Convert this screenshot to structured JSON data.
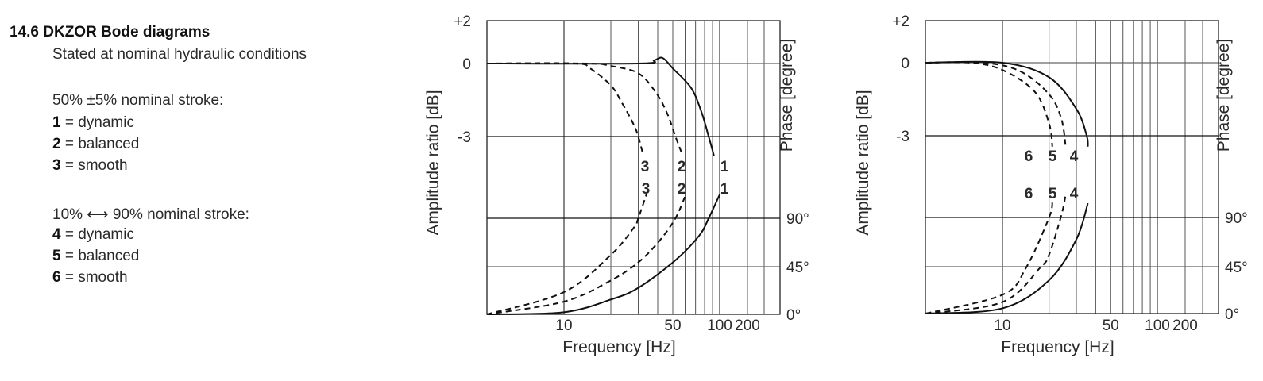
{
  "text": {
    "title": "14.6 DKZOR Bode diagrams",
    "subtitle": "Stated at nominal hydraulic conditions",
    "group1_heading": "50% ±5% nominal stroke:",
    "group1": [
      {
        "num": "1",
        "label": "= dynamic"
      },
      {
        "num": "2",
        "label": "= balanced"
      },
      {
        "num": "3",
        "label": "= smooth"
      }
    ],
    "group2_heading": "10% ⟷ 90% nominal stroke:",
    "group2": [
      {
        "num": "4",
        "label": "= dynamic"
      },
      {
        "num": "5",
        "label": "= balanced"
      },
      {
        "num": "6",
        "label": "= smooth"
      }
    ]
  },
  "chart_data": [
    {
      "type": "line",
      "xlabel": "Frequency [Hz]",
      "ylabel": "Amplitude ratio [dB]",
      "ylabel_right": "Phase [degree]",
      "x_scale": "log",
      "x_ticks": [
        "10",
        "50",
        "100",
        "200"
      ],
      "x_grid": [
        10,
        20,
        30,
        40,
        50,
        60,
        70,
        80,
        90,
        100,
        200,
        300
      ],
      "y_ticks": [
        "+2",
        "0",
        "-3"
      ],
      "y_right_ticks": [
        "90°",
        "45°",
        "0°"
      ],
      "grid": true,
      "series": [
        {
          "name": "1",
          "style": "solid",
          "kind": "amplitude",
          "points": [
            [
              3.2,
              0
            ],
            [
              30,
              0
            ],
            [
              38,
              0.15
            ],
            [
              43,
              0.26
            ],
            [
              50,
              -0.2
            ],
            [
              65.5,
              -1.0
            ],
            [
              76,
              -1.95
            ],
            [
              85,
              -3
            ],
            [
              92,
              -3.8
            ]
          ]
        },
        {
          "name": "2",
          "style": "dashed",
          "kind": "amplitude",
          "points": [
            [
              3.2,
              0
            ],
            [
              14,
              0
            ],
            [
              20,
              -0.1
            ],
            [
              30,
              -0.4
            ],
            [
              39,
              -1.2
            ],
            [
              46,
              -2.05
            ],
            [
              52,
              -3
            ],
            [
              58,
              -3.8
            ]
          ]
        },
        {
          "name": "3",
          "style": "dashed",
          "kind": "amplitude",
          "points": [
            [
              3.2,
              0
            ],
            [
              11.6,
              0
            ],
            [
              14.7,
              -0.2
            ],
            [
              20,
              -0.9
            ],
            [
              23.5,
              -1.6
            ],
            [
              28,
              -2.5
            ],
            [
              30,
              -3
            ],
            [
              32.4,
              -3.8
            ]
          ]
        },
        {
          "name": "1",
          "style": "solid",
          "kind": "phase",
          "points": [
            [
              3.2,
              0
            ],
            [
              10,
              2
            ],
            [
              20,
              14
            ],
            [
              30,
              25
            ],
            [
              52,
              51
            ],
            [
              74,
              74
            ],
            [
              85,
              90
            ],
            [
              100,
              112
            ]
          ]
        },
        {
          "name": "2",
          "style": "dashed",
          "kind": "phase",
          "points": [
            [
              3.2,
              0
            ],
            [
              10,
              12
            ],
            [
              20,
              32
            ],
            [
              30,
              49
            ],
            [
              41,
              69
            ],
            [
              52,
              90
            ],
            [
              61,
              113
            ]
          ]
        },
        {
          "name": "3",
          "style": "dashed",
          "kind": "phase",
          "points": [
            [
              3.2,
              0
            ],
            [
              10,
              21
            ],
            [
              20,
              56
            ],
            [
              28,
              81
            ],
            [
              30,
              90
            ],
            [
              34,
              113
            ]
          ]
        }
      ]
    },
    {
      "type": "line",
      "xlabel": "Frequency [Hz]",
      "ylabel": "Amplitude ratio  [dB]",
      "ylabel_right": "Phase [degree]",
      "x_scale": "log",
      "x_ticks": [
        "10",
        "50",
        "100",
        "200"
      ],
      "x_grid": [
        10,
        20,
        30,
        40,
        50,
        60,
        70,
        80,
        90,
        100,
        200,
        300
      ],
      "y_ticks": [
        "+2",
        "0",
        "-3"
      ],
      "y_right_ticks": [
        "90°",
        "45°",
        "0°"
      ],
      "grid": true,
      "series": [
        {
          "name": "4",
          "style": "solid",
          "kind": "amplitude",
          "points": [
            [
              3.2,
              0
            ],
            [
              10,
              0
            ],
            [
              20,
              -0.6
            ],
            [
              30,
              -1.9
            ],
            [
              35,
              -3
            ],
            [
              35.6,
              -3.45
            ]
          ]
        },
        {
          "name": "5",
          "style": "dashed",
          "kind": "amplitude",
          "points": [
            [
              3.2,
              0
            ],
            [
              7.5,
              0
            ],
            [
              13,
              -0.35
            ],
            [
              20,
              -1.3
            ],
            [
              24,
              -2.3
            ],
            [
              25.6,
              -3.45
            ]
          ]
        },
        {
          "name": "6",
          "style": "dashed",
          "kind": "amplitude",
          "points": [
            [
              3.2,
              0
            ],
            [
              6.2,
              0
            ],
            [
              10,
              -0.3
            ],
            [
              16.2,
              -1.2
            ],
            [
              20,
              -2.5
            ],
            [
              21,
              -3.45
            ]
          ]
        },
        {
          "name": "4",
          "style": "solid",
          "kind": "phase",
          "points": [
            [
              3.2,
              0
            ],
            [
              10,
              5
            ],
            [
              20,
              32
            ],
            [
              30,
              70
            ],
            [
              35.6,
              103
            ]
          ]
        },
        {
          "name": "5",
          "style": "dashed",
          "kind": "phase",
          "points": [
            [
              3.2,
              0
            ],
            [
              10,
              11
            ],
            [
              17.5,
              44
            ],
            [
              20,
              56
            ],
            [
              24,
              92
            ],
            [
              25.6,
              111
            ]
          ]
        },
        {
          "name": "6",
          "style": "dashed",
          "kind": "phase",
          "points": [
            [
              3.2,
              0
            ],
            [
              10,
              18
            ],
            [
              14.2,
              44
            ],
            [
              20,
              90
            ],
            [
              21,
              105
            ]
          ]
        }
      ]
    }
  ]
}
